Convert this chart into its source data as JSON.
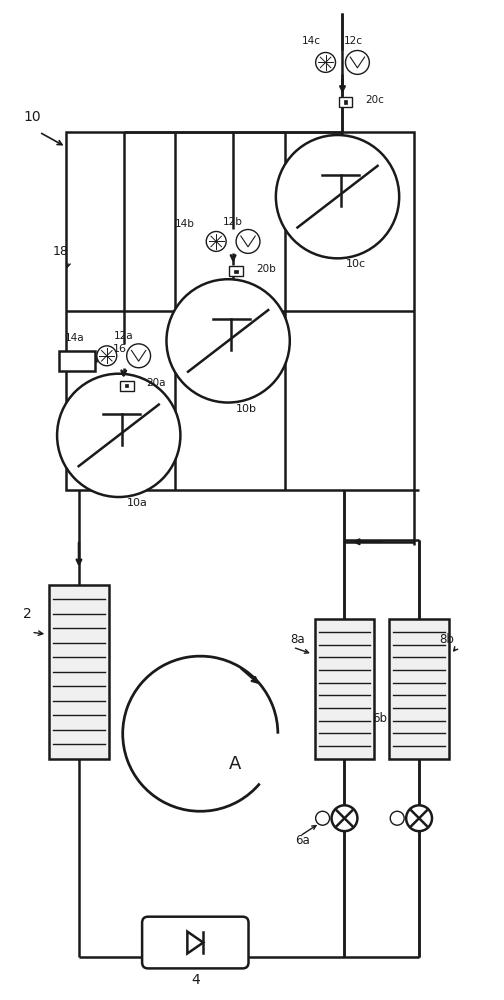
{
  "bg_color": "#ffffff",
  "line_color": "#1a1a1a",
  "line_width": 1.8,
  "thin_line": 1.0,
  "fig_width": 5.04,
  "fig_height": 10.0,
  "labels": {
    "system": "10",
    "header": "18",
    "vsd_label": "16",
    "comp_a": "10a",
    "comp_b": "10b",
    "comp_c": "10c",
    "motor_a": "12a",
    "motor_b": "12b",
    "motor_c": "12c",
    "sensor_a": "14a",
    "sensor_b": "14b",
    "sensor_c": "14c",
    "check_a": "20a",
    "check_b": "20b",
    "check_c": "20c",
    "evap": "2",
    "expv": "4",
    "oil_sep_a": "6a",
    "oil_sep_b": "6b",
    "cond_a": "8a",
    "cond_b": "8b",
    "loop": "A"
  }
}
